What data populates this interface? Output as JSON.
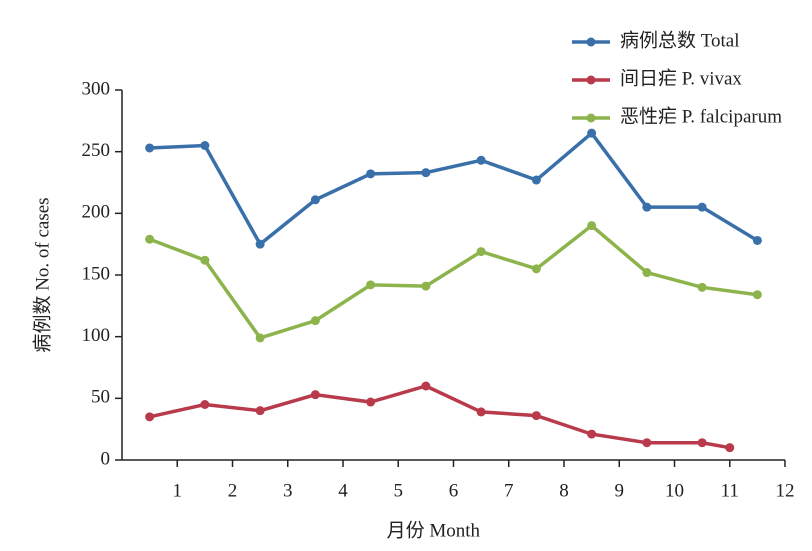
{
  "chart_data": {
    "type": "line",
    "y_label": "病例数 No. of cases",
    "x_label": "月份 Month",
    "xlim": [
      0,
      12
    ],
    "xticks": [
      1,
      2,
      3,
      4,
      5,
      6,
      7,
      8,
      9,
      10,
      11,
      12
    ],
    "ylim": [
      0,
      300
    ],
    "yticks": [
      0,
      50,
      100,
      150,
      200,
      250,
      300
    ],
    "legend": "upper right",
    "series": [
      {
        "name": "病例总数 Total",
        "color": "#3a70aa",
        "x": [
          0.5,
          1.5,
          2.5,
          3.5,
          4.5,
          5.5,
          6.5,
          7.5,
          8.5,
          9.5,
          10.5,
          11.5
        ],
        "values": [
          253,
          255,
          175,
          211,
          232,
          233,
          243,
          227,
          265,
          205,
          205,
          178
        ]
      },
      {
        "name": "间日疟 P. vivax",
        "color": "#b83a4b",
        "x": [
          0.5,
          1.5,
          2.5,
          3.5,
          4.5,
          5.5,
          6.5,
          7.5,
          8.5,
          9.5,
          10.5,
          11
        ],
        "values": [
          35,
          45,
          40,
          53,
          47,
          60,
          39,
          36,
          21,
          14,
          14,
          10
        ]
      },
      {
        "name": "恶性疟 P. falciparum",
        "color": "#8db44c",
        "x": [
          0.5,
          1.5,
          2.5,
          3.5,
          4.5,
          5.5,
          6.5,
          7.5,
          8.5,
          9.5,
          10.5,
          11.5
        ],
        "values": [
          179,
          162,
          99,
          113,
          142,
          141,
          169,
          155,
          190,
          152,
          140,
          134
        ]
      }
    ]
  }
}
